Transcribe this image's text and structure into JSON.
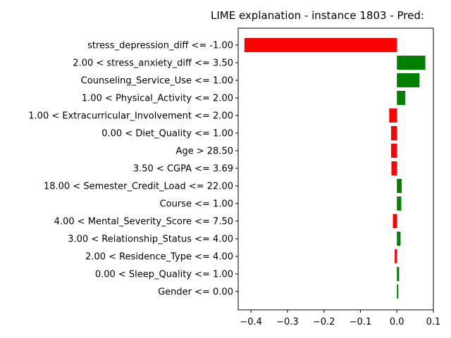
{
  "chart_data": {
    "type": "bar",
    "orientation": "horizontal",
    "title": "LIME explanation - instance 1803 - Pred:",
    "xlabel": "",
    "ylabel": "",
    "xlim": [
      -0.435,
      0.1
    ],
    "xticks": [
      -0.4,
      -0.3,
      -0.2,
      -0.1,
      0.0,
      0.1
    ],
    "xtick_labels": [
      "−0.4",
      "−0.3",
      "−0.2",
      "−0.1",
      "0.0",
      "0.1"
    ],
    "grid": false,
    "legend": "none",
    "colors": {
      "positive": "#008000",
      "negative": "#ff0000"
    },
    "categories": [
      "stress_depression_diff <= -1.00",
      "2.00 < stress_anxiety_diff <= 3.50",
      "Counseling_Service_Use <= 1.00",
      "1.00 < Physical_Activity <= 2.00",
      "1.00 < Extracurricular_Involvement <= 2.00",
      "0.00 < Diet_Quality <= 1.00",
      "Age > 28.50",
      "3.50 < CGPA <= 3.69",
      "18.00 < Semester_Credit_Load <= 22.00",
      "Course <= 1.00",
      "4.00 < Mental_Severity_Score <= 7.50",
      "3.00 < Relationship_Status <= 4.00",
      "2.00 < Residence_Type <= 4.00",
      "0.00 < Sleep_Quality <= 1.00",
      "Gender <= 0.00"
    ],
    "values": [
      -0.418,
      0.078,
      0.062,
      0.023,
      -0.021,
      -0.016,
      -0.016,
      -0.015,
      0.013,
      0.012,
      -0.011,
      0.01,
      -0.006,
      0.006,
      0.004
    ]
  }
}
